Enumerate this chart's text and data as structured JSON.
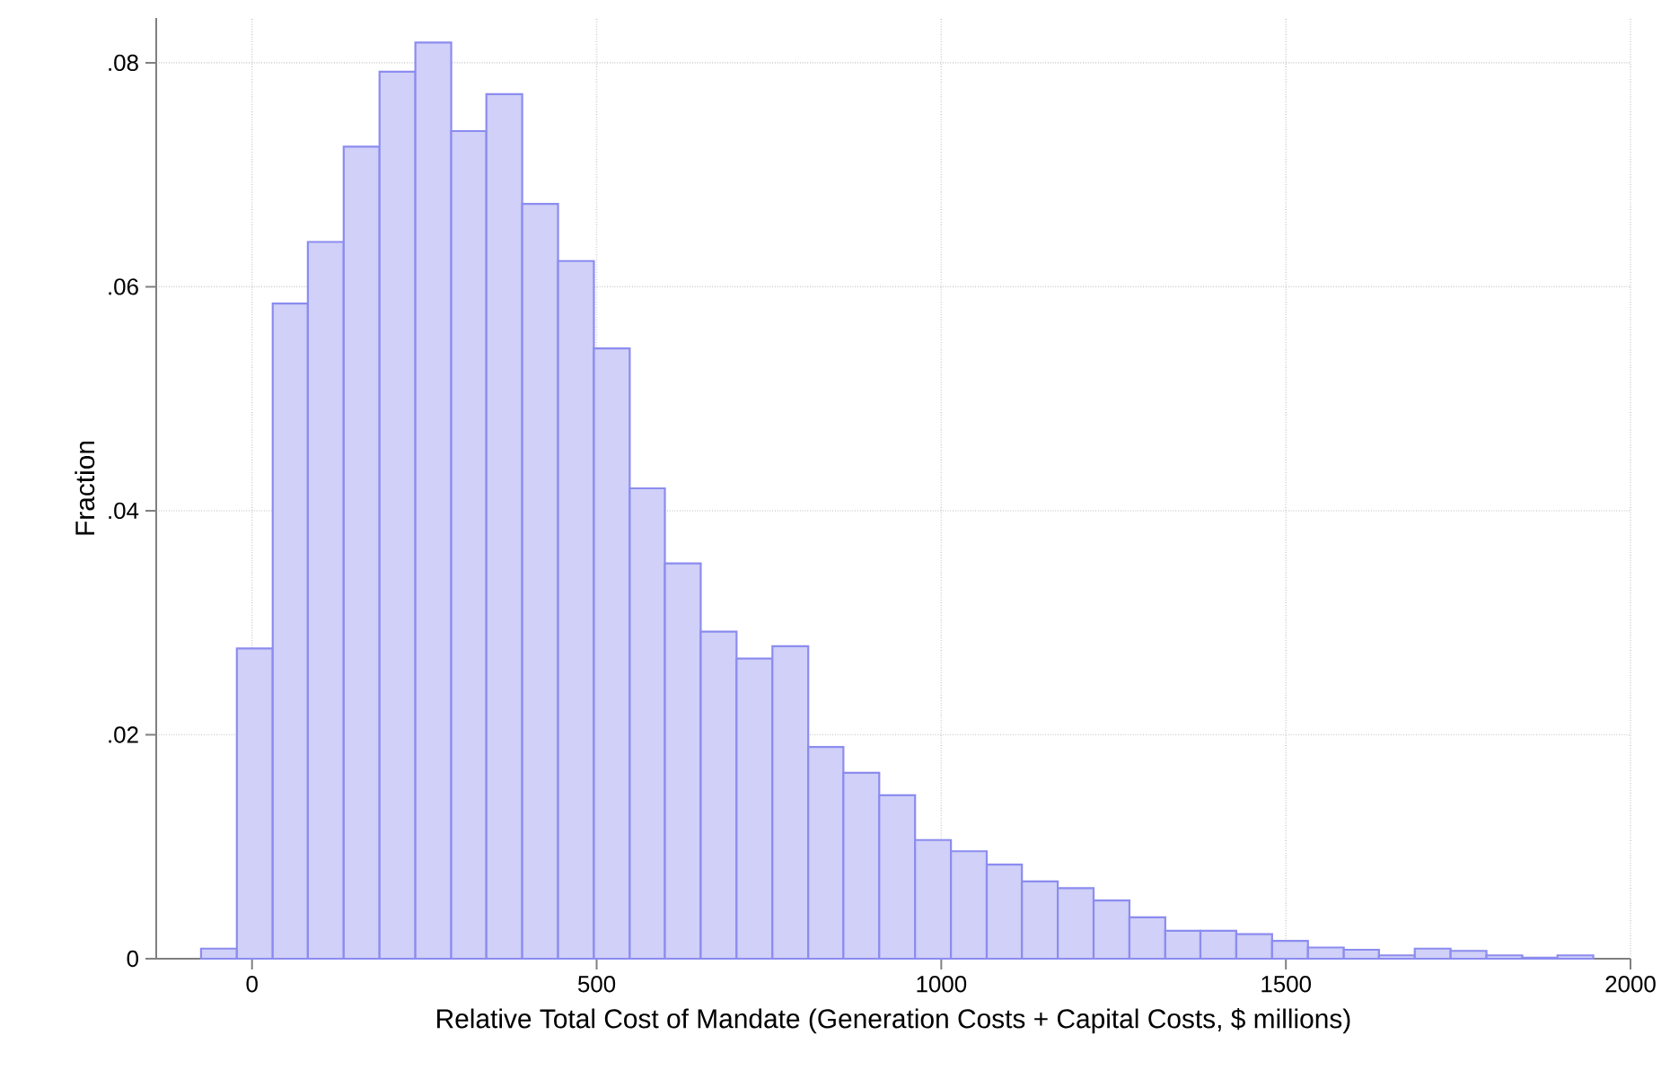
{
  "chart_data": {
    "type": "histogram",
    "xlabel": "Relative Total Cost of Mandate (Generation Costs + Capital Costs, $ millions)",
    "ylabel": "Fraction",
    "bins": [
      -74,
      -22,
      30,
      81,
      133,
      185,
      237,
      289,
      340,
      392,
      444,
      496,
      548,
      599,
      651,
      703,
      755,
      807,
      858,
      910,
      962,
      1014,
      1066,
      1117,
      1169,
      1221,
      1273,
      1325,
      1376,
      1428,
      1480,
      1532,
      1584,
      1635,
      1687,
      1739,
      1791,
      1843,
      1894,
      1946
    ],
    "values": [
      0.0009,
      0.0277,
      0.0585,
      0.064,
      0.0725,
      0.0792,
      0.0818,
      0.0739,
      0.0772,
      0.0674,
      0.0623,
      0.0545,
      0.042,
      0.0353,
      0.0292,
      0.0268,
      0.0279,
      0.0189,
      0.0166,
      0.0146,
      0.0106,
      0.0096,
      0.0084,
      0.0069,
      0.0063,
      0.0052,
      0.0037,
      0.0025,
      0.0025,
      0.0022,
      0.0016,
      0.001,
      0.0008,
      0.0003,
      0.0009,
      0.0007,
      0.0003,
      0.0001,
      0.0003
    ],
    "color": "#d0d0f8",
    "xlim": [
      -139,
      2000
    ],
    "ylim": [
      0,
      0.084
    ],
    "xticks": [
      0,
      500,
      1000,
      1500,
      2000
    ],
    "yticks": [
      0,
      {
        "value": 0.02,
        "label": ".02"
      },
      {
        "value": 0.04,
        "label": ".04"
      },
      {
        "value": 0.06,
        "label": ".06"
      },
      {
        "value": 0.08,
        "label": ".08"
      }
    ],
    "grid": true
  }
}
